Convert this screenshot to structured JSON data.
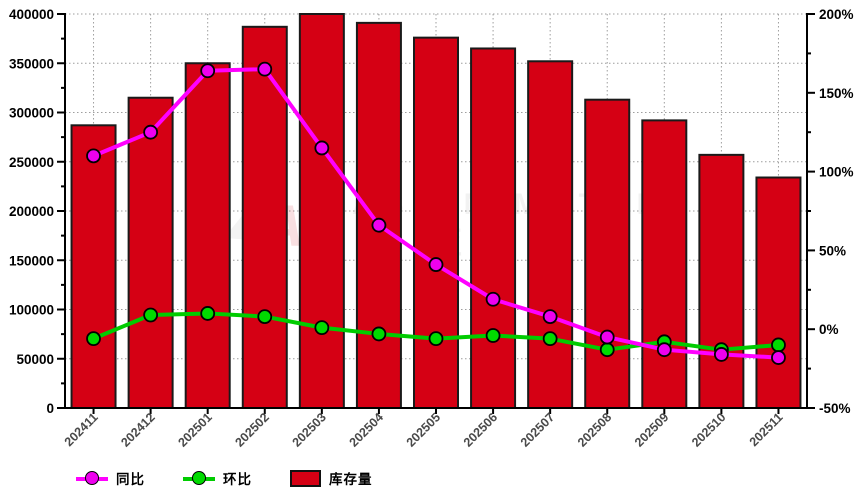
{
  "chart_data": {
    "type": "bar+line",
    "title": "",
    "categories": [
      "202411",
      "202412",
      "202501",
      "202502",
      "202503",
      "202504",
      "202505",
      "202506",
      "202507",
      "202508",
      "202509",
      "202510",
      "202511"
    ],
    "series": [
      {
        "name": "库存量",
        "type": "bar",
        "axis": "left",
        "color": "#D50014",
        "values": [
          287000,
          315000,
          350000,
          387000,
          400000,
          391000,
          376000,
          365000,
          352000,
          313000,
          292000,
          257000,
          234000
        ]
      },
      {
        "name": "环比",
        "type": "line",
        "axis": "right",
        "color": "#00CC00",
        "marker_color": "#00DB00",
        "values": [
          -6,
          9,
          10,
          8,
          1,
          -3,
          -6,
          -4,
          -6,
          -13,
          -8,
          -13,
          -10
        ]
      },
      {
        "name": "同比",
        "type": "line",
        "axis": "right",
        "color": "#FF00FF",
        "marker_color": "#EE00EE",
        "values": [
          110,
          125,
          164,
          165,
          115,
          66,
          41,
          19,
          8,
          -5,
          -13,
          -16,
          -18
        ]
      }
    ],
    "left_axis": {
      "min": 0,
      "max": 400000,
      "tick_values": [
        0,
        50000,
        100000,
        150000,
        200000,
        250000,
        300000,
        350000,
        400000
      ],
      "tick_labels": [
        "0",
        "50000",
        "100000",
        "150000",
        "200000",
        "250000",
        "300000",
        "350000",
        "400000"
      ],
      "minor_step": 25000
    },
    "right_axis": {
      "min": -50,
      "max": 200,
      "tick_values": [
        -50,
        0,
        50,
        100,
        150,
        200
      ],
      "tick_labels": [
        "-50%",
        "0%",
        "50%",
        "100%",
        "150%",
        "200%"
      ],
      "minor_step": 25
    },
    "grid": true,
    "legend_position": "bottom-left"
  },
  "legend": {
    "items": [
      {
        "label": "同比",
        "swatch": "line-magenta"
      },
      {
        "label": "环比",
        "swatch": "line-green"
      },
      {
        "label": "库存量",
        "swatch": "bar-red"
      }
    ]
  },
  "watermark": {
    "logo": "A",
    "line1": "ASIAN METAL",
    "line2": "亚洲金属网"
  },
  "colors": {
    "bar": "#D50014",
    "bar_border": "#1A1A1A",
    "yoy_line": "#FF00FF",
    "mom_line": "#00CC00",
    "grid": "#9E9E9E",
    "axis": "#000000",
    "y_tick_label": "#000000",
    "x_tick_label": "#4A4A4A",
    "watermark_gray": "#8A8A8A",
    "watermark_red": "#CC0011"
  }
}
